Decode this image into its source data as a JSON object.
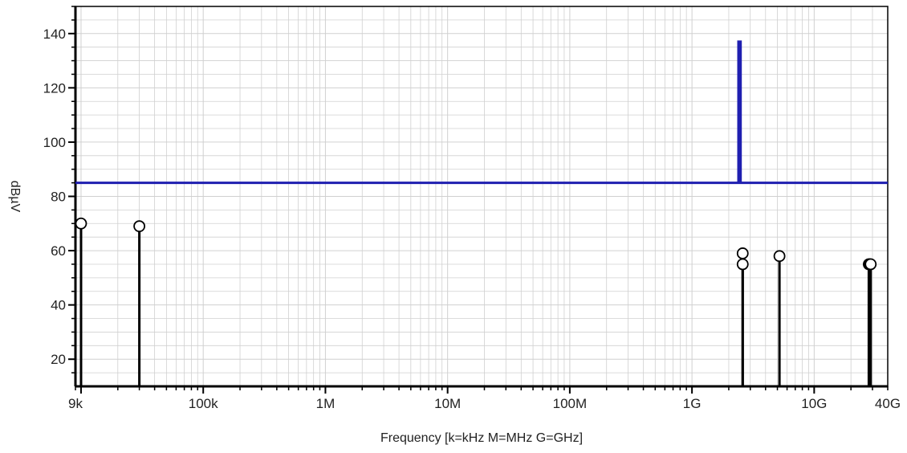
{
  "colors": {
    "grid": "#d0d0d0",
    "axis": "#000000",
    "limit_line": "#1f1fb0",
    "stems": "#000000",
    "marker": "#000000",
    "text": "#222222"
  },
  "chart_data": {
    "type": "stem",
    "title": "",
    "xlabel": "Frequency [k=kHz M=MHz G=GHz]",
    "ylabel": "dBµV",
    "xscale": "log",
    "xlim": [
      9000,
      40000000000
    ],
    "ylim": [
      10,
      150
    ],
    "grid": true,
    "x_ticks": [
      {
        "value": 9000,
        "label": "9k"
      },
      {
        "value": 100000,
        "label": "100k"
      },
      {
        "value": 1000000,
        "label": "1M"
      },
      {
        "value": 10000000,
        "label": "10M"
      },
      {
        "value": 100000000,
        "label": "100M"
      },
      {
        "value": 1000000000,
        "label": "1G"
      },
      {
        "value": 10000000000,
        "label": "10G"
      },
      {
        "value": 40000000000,
        "label": "40G"
      }
    ],
    "y_ticks": [
      {
        "value": 20,
        "label": "20"
      },
      {
        "value": 40,
        "label": "40"
      },
      {
        "value": 60,
        "label": "60"
      },
      {
        "value": 80,
        "label": "80"
      },
      {
        "value": 100,
        "label": "100"
      },
      {
        "value": 120,
        "label": "120"
      },
      {
        "value": 140,
        "label": "140"
      }
    ],
    "series": [
      {
        "kind": "limit-line",
        "points": [
          [
            9000,
            85
          ],
          [
            2400000000,
            85
          ],
          [
            2400000000,
            137
          ],
          [
            2500000000,
            137
          ],
          [
            2500000000,
            85
          ],
          [
            40000000000,
            85
          ]
        ]
      },
      {
        "kind": "peaks",
        "points": [
          [
            10000,
            70
          ],
          [
            30000,
            69
          ],
          [
            2600000000,
            59
          ],
          [
            2600000000,
            55
          ],
          [
            5200000000,
            58
          ],
          [
            28000000000,
            55
          ],
          [
            28500000000,
            55
          ],
          [
            29000000000,
            55
          ]
        ]
      }
    ]
  }
}
